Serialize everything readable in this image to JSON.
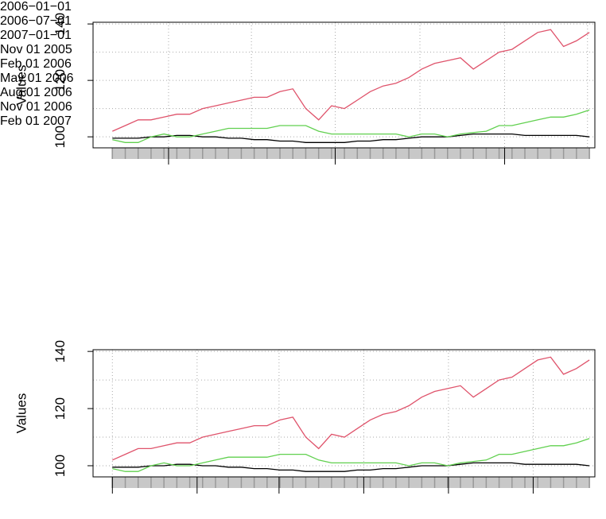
{
  "chart_data": [
    {
      "type": "line",
      "ylabel": "Values",
      "x": [
        "2005-11-01",
        "2005-11-15",
        "2005-11-29",
        "2005-12-13",
        "2005-12-27",
        "2006-01-10",
        "2006-01-24",
        "2006-02-07",
        "2006-02-21",
        "2006-03-07",
        "2006-03-21",
        "2006-04-04",
        "2006-04-18",
        "2006-05-02",
        "2006-05-16",
        "2006-05-30",
        "2006-06-13",
        "2006-06-27",
        "2006-07-11",
        "2006-07-25",
        "2006-08-08",
        "2006-08-22",
        "2006-09-05",
        "2006-09-19",
        "2006-10-03",
        "2006-10-17",
        "2006-10-31",
        "2006-11-14",
        "2006-11-28",
        "2006-12-12",
        "2006-12-26",
        "2007-01-09",
        "2007-01-23",
        "2007-02-06",
        "2007-02-20",
        "2007-03-06",
        "2007-03-20",
        "2007-04-03"
      ],
      "series": [
        {
          "color": "#000000",
          "values": [
            99.5,
            99.5,
            99.5,
            100,
            100,
            100.5,
            100.5,
            100,
            100,
            99.5,
            99.5,
            99,
            99,
            98.5,
            98.5,
            98,
            98,
            98,
            98,
            98.5,
            98.5,
            99,
            99,
            99.5,
            100,
            100,
            100,
            100.5,
            101,
            101,
            101,
            101,
            100.5,
            100.5,
            100.5,
            100.5,
            100.5,
            100
          ]
        },
        {
          "color": "#DF536B",
          "values": [
            102,
            104,
            106,
            106,
            107,
            108,
            108,
            110,
            111,
            112,
            113,
            114,
            114,
            116,
            117,
            110,
            106,
            111,
            110,
            113,
            116,
            118,
            119,
            121,
            124,
            126,
            127,
            128,
            124,
            127,
            130,
            131,
            134,
            137,
            138,
            132,
            134,
            137
          ]
        },
        {
          "color": "#61D04F",
          "values": [
            99,
            98,
            98,
            100,
            101,
            100,
            100,
            101,
            102,
            103,
            103,
            103,
            103,
            104,
            104,
            104,
            102,
            101,
            101,
            101,
            101,
            101,
            101,
            100,
            101,
            101,
            100,
            101,
            101.5,
            102,
            104,
            104,
            105,
            106,
            107,
            107,
            108,
            109.5
          ]
        }
      ],
      "xlim": [
        "2005-10-11",
        "2007-04-09"
      ],
      "xticks": [
        {
          "value": "2006-01-01",
          "label": "2006−01−01"
        },
        {
          "value": "2006-07-01",
          "label": "2006−07−01"
        },
        {
          "value": "2007-01-01",
          "label": "2007−01−01"
        }
      ],
      "xgrid": [
        "2006-01-01",
        "2006-04-01",
        "2006-07-01",
        "2006-10-01",
        "2007-01-01",
        "2007-04-01"
      ],
      "ylim": [
        96.1,
        140.6
      ],
      "yticks": [
        100,
        120,
        140
      ],
      "ygrid": [
        100,
        110,
        120,
        130,
        140
      ]
    },
    {
      "type": "line",
      "ylabel": "Values",
      "x": [
        "2005-11-01",
        "2005-11-15",
        "2005-11-29",
        "2005-12-13",
        "2005-12-27",
        "2006-01-10",
        "2006-01-24",
        "2006-02-07",
        "2006-02-21",
        "2006-03-07",
        "2006-03-21",
        "2006-04-04",
        "2006-04-18",
        "2006-05-02",
        "2006-05-16",
        "2006-05-30",
        "2006-06-13",
        "2006-06-27",
        "2006-07-11",
        "2006-07-25",
        "2006-08-08",
        "2006-08-22",
        "2006-09-05",
        "2006-09-19",
        "2006-10-03",
        "2006-10-17",
        "2006-10-31",
        "2006-11-14",
        "2006-11-28",
        "2006-12-12",
        "2006-12-26",
        "2007-01-09",
        "2007-01-23",
        "2007-02-06",
        "2007-02-20",
        "2007-03-06",
        "2007-03-20",
        "2007-04-03"
      ],
      "series": [
        {
          "color": "#000000",
          "values": [
            99.5,
            99.5,
            99.5,
            100,
            100,
            100.5,
            100.5,
            100,
            100,
            99.5,
            99.5,
            99,
            99,
            98.5,
            98.5,
            98,
            98,
            98,
            98,
            98.5,
            98.5,
            99,
            99,
            99.5,
            100,
            100,
            100,
            100.5,
            101,
            101,
            101,
            101,
            100.5,
            100.5,
            100.5,
            100.5,
            100.5,
            100
          ]
        },
        {
          "color": "#DF536B",
          "values": [
            102,
            104,
            106,
            106,
            107,
            108,
            108,
            110,
            111,
            112,
            113,
            114,
            114,
            116,
            117,
            110,
            106,
            111,
            110,
            113,
            116,
            118,
            119,
            121,
            124,
            126,
            127,
            128,
            124,
            127,
            130,
            131,
            134,
            137,
            138,
            132,
            134,
            137
          ]
        },
        {
          "color": "#61D04F",
          "values": [
            99,
            98,
            98,
            100,
            101,
            100,
            100,
            101,
            102,
            103,
            103,
            103,
            103,
            104,
            104,
            104,
            102,
            101,
            101,
            101,
            101,
            101,
            101,
            100,
            101,
            101,
            100,
            101,
            101.5,
            102,
            104,
            104,
            105,
            106,
            107,
            107,
            108,
            109.5
          ]
        }
      ],
      "xlim": [
        "2005-10-11",
        "2007-04-09"
      ],
      "xticks": [
        {
          "value": "2005-11-01",
          "label": "Nov 01\n2005"
        },
        {
          "value": "2006-02-01",
          "label": "Feb 01\n2006"
        },
        {
          "value": "2006-05-01",
          "label": "May 01\n2006"
        },
        {
          "value": "2006-08-01",
          "label": "Aug 01\n2006"
        },
        {
          "value": "2006-11-01",
          "label": "Nov 01\n2006"
        },
        {
          "value": "2007-02-01",
          "label": "Feb 01\n2007"
        }
      ],
      "xgrid": [
        "2005-11-01",
        "2006-02-01",
        "2006-05-01",
        "2006-08-01",
        "2006-11-01",
        "2007-02-01"
      ],
      "ylim": [
        96.1,
        140.6
      ],
      "yticks": [
        100,
        120,
        140
      ],
      "ygrid": [
        100,
        110,
        120,
        130,
        140
      ]
    }
  ]
}
